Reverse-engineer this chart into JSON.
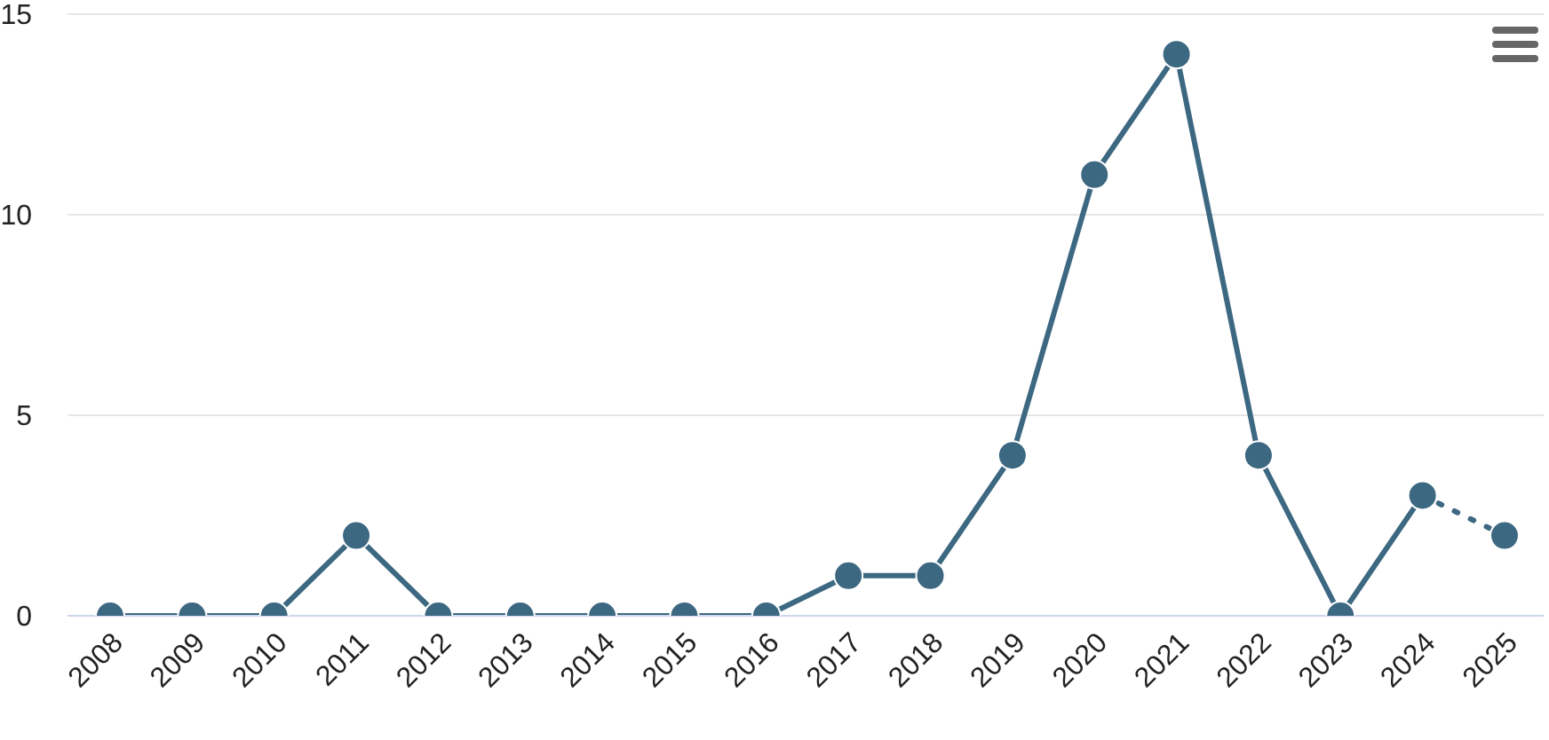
{
  "chart_data": {
    "type": "line",
    "categories": [
      "2008",
      "2009",
      "2010",
      "2011",
      "2012",
      "2013",
      "2014",
      "2015",
      "2016",
      "2017",
      "2018",
      "2019",
      "2020",
      "2021",
      "2022",
      "2023",
      "2024",
      "2025"
    ],
    "series": [
      {
        "color": "#3d6882",
        "line_style": "solid",
        "values": [
          0,
          0,
          0,
          2,
          0,
          0,
          0,
          0,
          0,
          1,
          1,
          4,
          11,
          14,
          4,
          0,
          3,
          null
        ]
      },
      {
        "color": "#3d6882",
        "line_style": "dotted",
        "values": [
          null,
          null,
          null,
          null,
          null,
          null,
          null,
          null,
          null,
          null,
          null,
          null,
          null,
          null,
          null,
          null,
          3,
          2
        ]
      }
    ],
    "ylim": [
      0,
      15
    ],
    "yticks": [
      0,
      5,
      10,
      15
    ],
    "grid": "y",
    "legend": false,
    "marker": "circle"
  }
}
